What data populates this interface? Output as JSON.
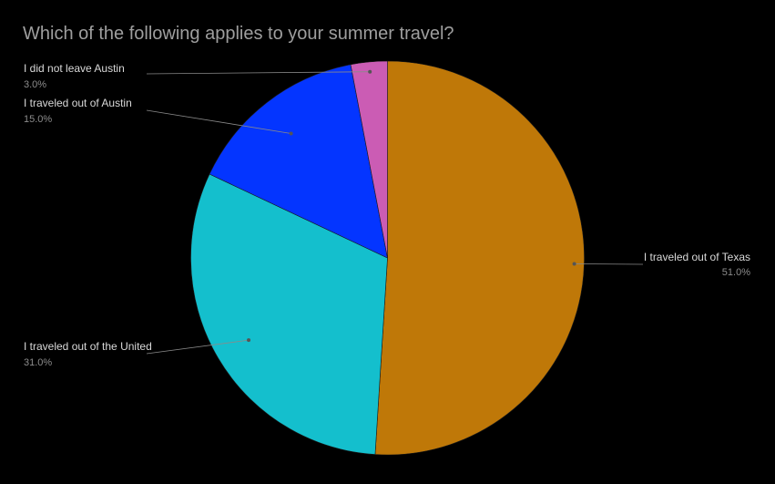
{
  "chart_data": {
    "type": "pie",
    "title": "Which of the following applies to your summer travel?",
    "slices": [
      {
        "label": "I traveled out of Texas",
        "value": 51.0,
        "percent_label": "51.0%",
        "color": "#bf7808"
      },
      {
        "label": "I traveled out of the United",
        "value": 31.0,
        "percent_label": "31.0%",
        "color": "#14bfcd"
      },
      {
        "label": "I traveled out of Austin",
        "value": 15.0,
        "percent_label": "15.0%",
        "color": "#0435ff"
      },
      {
        "label": "I did not leave Austin",
        "value": 3.0,
        "percent_label": "3.0%",
        "color": "#cb5cb4"
      }
    ],
    "start_angle": "12 o'clock",
    "direction": "clockwise",
    "legend": "none"
  }
}
